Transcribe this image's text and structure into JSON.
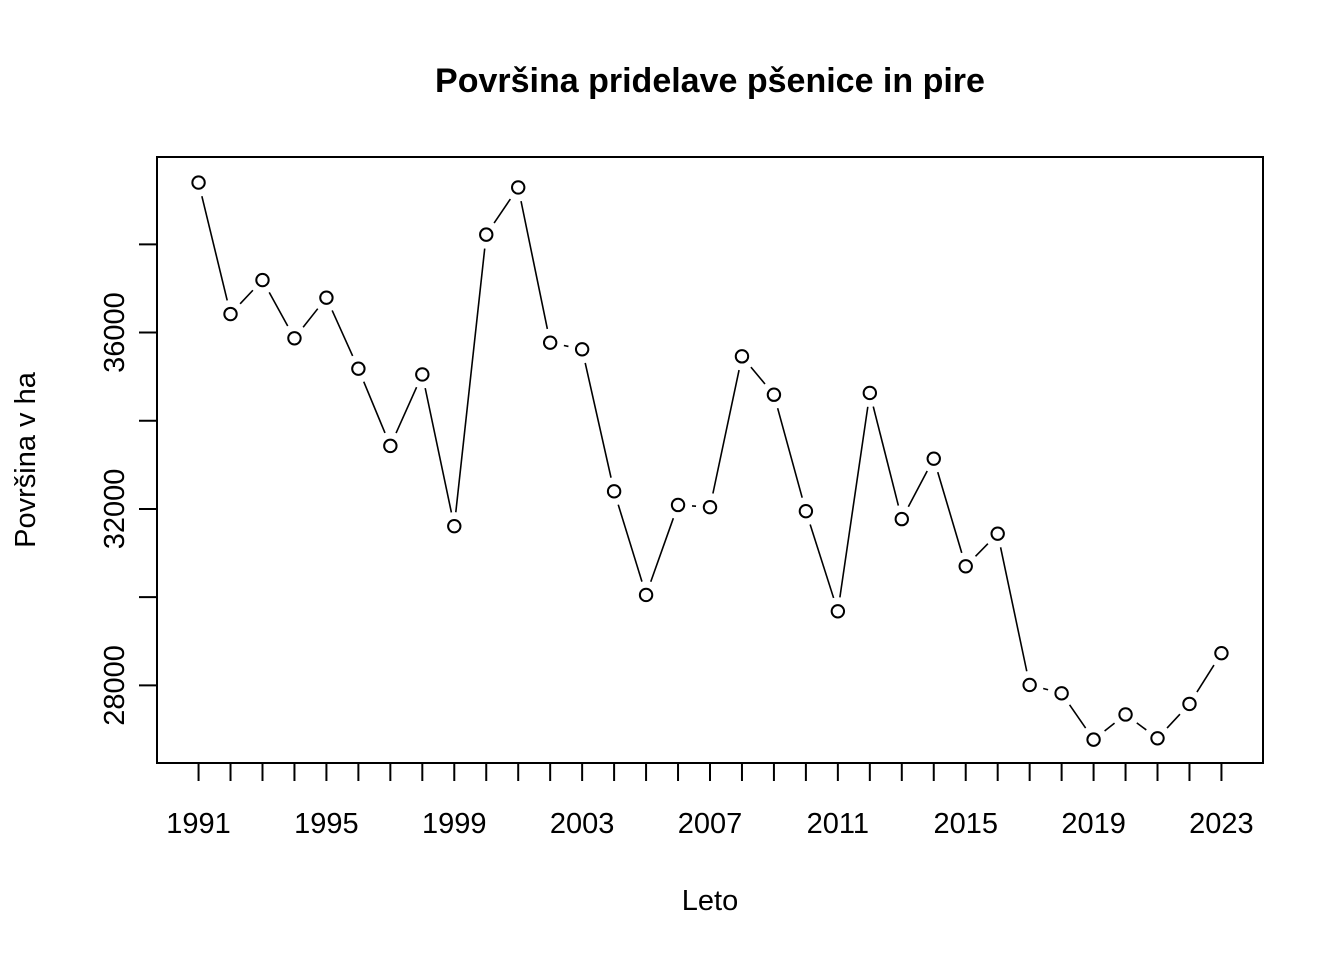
{
  "chart_data": {
    "type": "line",
    "style": "points-and-lines",
    "title": "Površina pridelave pšenice in pire",
    "xlabel": "Leto",
    "ylabel": "Površina v ha",
    "x": [
      1991,
      1992,
      1993,
      1994,
      1995,
      1996,
      1997,
      1998,
      1999,
      2000,
      2001,
      2002,
      2003,
      2004,
      2005,
      2006,
      2007,
      2008,
      2009,
      2010,
      2011,
      2012,
      2013,
      2014,
      2015,
      2016,
      2017,
      2018,
      2019,
      2020,
      2021,
      2022,
      2023
    ],
    "series": [
      {
        "values": [
          39400,
          36420,
          37190,
          35870,
          36790,
          35180,
          33430,
          35050,
          31610,
          38220,
          39290,
          35770,
          35620,
          32400,
          30050,
          32090,
          32040,
          35460,
          34590,
          31950,
          29680,
          34630,
          31770,
          33140,
          30700,
          31440,
          28010,
          27820,
          26770,
          27340,
          26800,
          27580,
          28730
        ]
      }
    ],
    "xticks": [
      1991,
      1995,
      1999,
      2003,
      2007,
      2011,
      2015,
      2019,
      2023
    ],
    "yticks": [
      28000,
      30000,
      32000,
      34000,
      36000,
      38000
    ],
    "ytick_labels": [
      "28000",
      "",
      "32000",
      "",
      "36000",
      ""
    ],
    "xlim": [
      1989.7,
      2024.3
    ],
    "ylim": [
      26240,
      39980
    ],
    "grid": false,
    "legend": "none"
  }
}
